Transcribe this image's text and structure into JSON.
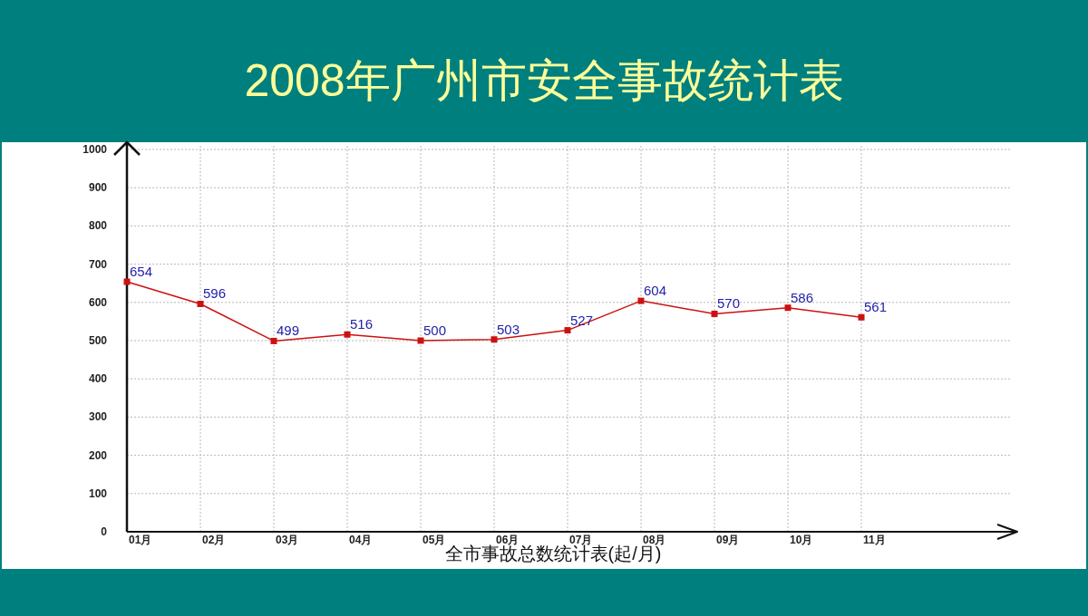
{
  "chart_data": {
    "type": "line",
    "title": "2008年广州市安全事故统计表",
    "xlabel": "全市事故总数统计表(起/月)",
    "categories": [
      "01月",
      "02月",
      "03月",
      "04月",
      "05月",
      "06月",
      "07月",
      "08月",
      "09月",
      "10月",
      "11月"
    ],
    "series": [
      {
        "color": "#cc1111",
        "values": [
          654,
          596,
          499,
          516,
          500,
          503,
          527,
          604,
          570,
          586,
          561
        ]
      }
    ],
    "ylim": [
      0,
      1000
    ],
    "yticks": [
      0,
      100,
      200,
      300,
      400,
      500,
      600,
      700,
      800,
      900,
      1000
    ],
    "grid": true,
    "marker": "square",
    "line_style": "solid",
    "data_labels": true
  }
}
